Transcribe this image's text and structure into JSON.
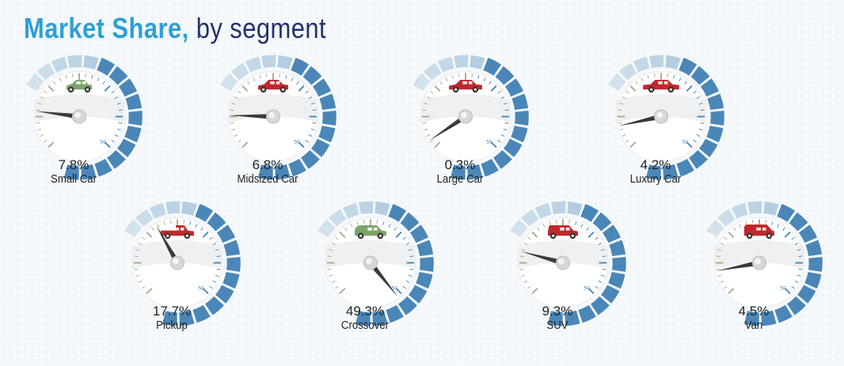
{
  "title": {
    "main": "Market Share,",
    "sub": "by segment"
  },
  "colors": {
    "blue_segment": "#4a87b8",
    "light_blue_segment": "#a8c6dc",
    "tan_tick": "#b8a48a",
    "needle": "#3a3a3a",
    "green_vehicle": "#7aa567",
    "red_vehicle": "#c0282d",
    "title_blue": "#2d9fd7",
    "title_navy": "#24306e"
  },
  "chart_data": {
    "type": "gauge",
    "unit": "%",
    "max_scale_label": "50",
    "series": [
      {
        "label": "Small Car",
        "value": 7.8,
        "display": "7.8%",
        "vehicle_icon": "small-car-icon",
        "icon_color": "green"
      },
      {
        "label": "Midsized Car",
        "value": 6.8,
        "display": "6.8%",
        "vehicle_icon": "midsized-car-icon",
        "icon_color": "red"
      },
      {
        "label": "Large Car",
        "value": 0.3,
        "display": "0.3%",
        "vehicle_icon": "large-car-icon",
        "icon_color": "red"
      },
      {
        "label": "Luxury Car",
        "value": 4.2,
        "display": "4.2%",
        "vehicle_icon": "luxury-car-icon",
        "icon_color": "red"
      },
      {
        "label": "Pickup",
        "value": 17.7,
        "display": "17.7%",
        "vehicle_icon": "pickup-truck-icon",
        "icon_color": "red"
      },
      {
        "label": "Crossover",
        "value": 49.3,
        "display": "49.3%",
        "vehicle_icon": "crossover-icon",
        "icon_color": "green"
      },
      {
        "label": "SUV",
        "value": 9.3,
        "display": "9.3%",
        "vehicle_icon": "suv-icon",
        "icon_color": "red"
      },
      {
        "label": "Van",
        "value": 4.5,
        "display": "4.5%",
        "vehicle_icon": "van-icon",
        "icon_color": "red"
      }
    ]
  }
}
